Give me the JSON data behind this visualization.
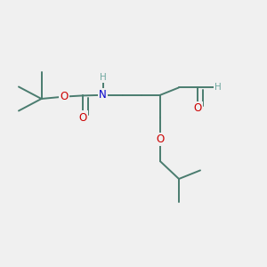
{
  "bg_color": "#f0f0f0",
  "bond_color": "#4a7c6f",
  "atom_colors": {
    "O": "#cc0000",
    "N": "#0000cc",
    "H": "#6fa8a0",
    "C": "#4a7c6f"
  },
  "bond_width": 1.4,
  "figsize": [
    3.0,
    3.0
  ],
  "dpi": 100,
  "xlim": [
    0,
    10
  ],
  "ylim": [
    0,
    10
  ],
  "font_size_atom": 8.5,
  "font_size_H": 7.5
}
